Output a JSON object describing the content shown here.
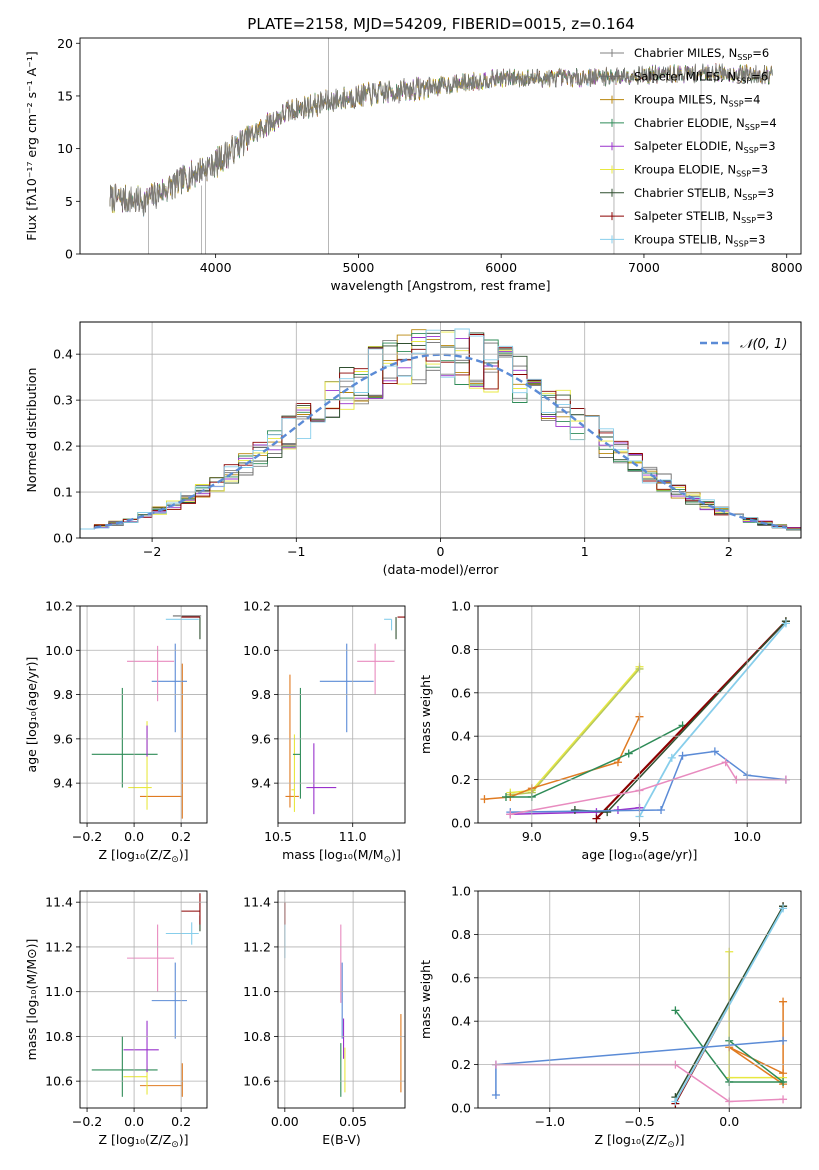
{
  "figure": {
    "title": "PLATE=2158, MJD=54209, FIBERID=0015, z=0.164"
  },
  "chart_data": [
    {
      "id": "spectrum",
      "type": "line",
      "xlabel": "wavelength [Angstrom, rest frame]",
      "ylabel": "Flux [fλ10⁻¹⁷ erg cm⁻² s⁻¹ A⁻¹]",
      "xlim": [
        3050,
        8100
      ],
      "ylim": [
        0,
        20.5
      ],
      "xticks": [
        4000,
        5000,
        6000,
        7000,
        8000
      ],
      "yticks": [
        0,
        5,
        10,
        15,
        20
      ],
      "grid": false,
      "legend_position": "right",
      "series": [
        {
          "name": "Chabrier MILES, N_SSP=6",
          "label_main": "Chabrier MILES, N",
          "label_sub": "SSP",
          "label_tail": "=6",
          "color": "#808080"
        },
        {
          "name": "Salpeter MILES, N_SSP=6",
          "label_main": "Salpeter MILES, N",
          "label_sub": "SSP",
          "label_tail": "=6",
          "color": "#6b6b6b"
        },
        {
          "name": "Kroupa MILES, N_SSP=4",
          "label_main": "Kroupa MILES, N",
          "label_sub": "SSP",
          "label_tail": "=4",
          "color": "#b8860b"
        },
        {
          "name": "Chabrier ELODIE, N_SSP=4",
          "label_main": "Chabrier ELODIE, N",
          "label_sub": "SSP",
          "label_tail": "=4",
          "color": "#2e8b57"
        },
        {
          "name": "Salpeter ELODIE, N_SSP=3",
          "label_main": "Salpeter ELODIE, N",
          "label_sub": "SSP",
          "label_tail": "=3",
          "color": "#9932cc"
        },
        {
          "name": "Kroupa ELODIE, N_SSP=3",
          "label_main": "Kroupa ELODIE, N",
          "label_sub": "SSP",
          "label_tail": "=3",
          "color": "#e8e840"
        },
        {
          "name": "Chabrier STELIB, N_SSP=3",
          "label_main": "Chabrier STELIB, N",
          "label_sub": "SSP",
          "label_tail": "=3",
          "color": "#2f4f2f"
        },
        {
          "name": "Salpeter STELIB, N_SSP=3",
          "label_main": "Salpeter STELIB, N",
          "label_sub": "SSP",
          "label_tail": "=3",
          "color": "#8b0000"
        },
        {
          "name": "Kroupa STELIB, N_SSP=3",
          "label_main": "Kroupa STELIB, N",
          "label_sub": "SSP",
          "label_tail": "=3",
          "color": "#87ceeb"
        }
      ],
      "curve_knots": [
        [
          3250,
          5.3
        ],
        [
          3500,
          5.0
        ],
        [
          3700,
          6.5
        ],
        [
          3900,
          8.0
        ],
        [
          4000,
          8.6
        ],
        [
          4200,
          10.8
        ],
        [
          4500,
          13.5
        ],
        [
          4800,
          14.5
        ],
        [
          5000,
          15.0
        ],
        [
          5300,
          15.5
        ],
        [
          5600,
          16.0
        ],
        [
          6000,
          16.7
        ],
        [
          6500,
          16.7
        ],
        [
          7000,
          17.0
        ],
        [
          7500,
          17.2
        ],
        [
          7900,
          17.0
        ]
      ],
      "spike_lines": [
        [
          3530,
          0,
          5
        ],
        [
          3900,
          0,
          6.5
        ],
        [
          3930,
          0,
          7.5
        ],
        [
          4790,
          0,
          20.5
        ],
        [
          6790,
          0,
          16.5
        ],
        [
          7400,
          0,
          16.5
        ]
      ]
    },
    {
      "id": "residuals",
      "type": "histogram",
      "xlabel": "(data-model)/error",
      "ylabel": "Normed distribution",
      "xlim": [
        -2.5,
        2.5
      ],
      "ylim": [
        0,
        0.47
      ],
      "xticks": [
        -2,
        -1,
        0,
        1,
        2
      ],
      "yticks": [
        0.0,
        0.1,
        0.2,
        0.3,
        0.4
      ],
      "grid": true,
      "legend_position": "top-right",
      "legend_label": "𝒩(0, 1)",
      "gaussian": {
        "mean": 0,
        "sigma": 1,
        "color": "#5b8bd6"
      },
      "bin_width": 0.1
    },
    {
      "id": "z-age",
      "type": "errorbar",
      "xlabel_main": "Z [log₁₀(Z/Z",
      "xlabel_sub": "⊙",
      "xlabel_tail": ")]",
      "ylabel": "age  [log₁₀(age/yr)]",
      "xlim": [
        -0.23,
        0.31
      ],
      "ylim": [
        9.22,
        10.2
      ],
      "xticks": [
        -0.2,
        0.0,
        0.2
      ],
      "yticks": [
        9.4,
        9.6,
        9.8,
        10.0,
        10.2
      ],
      "grid": true,
      "points": [
        {
          "x": 0.205,
          "xerr": [
            0.18,
            0.0
          ],
          "y": 9.34,
          "yerr": [
            0.1,
            0.6
          ],
          "color": "#e07b22"
        },
        {
          "x": 0.055,
          "xerr": [
            0.08,
            0.02
          ],
          "y": 9.38,
          "yerr": [
            0.1,
            0.3
          ],
          "color": "#e8e840"
        },
        {
          "x": -0.05,
          "xerr": [
            0.13,
            0.15
          ],
          "y": 9.53,
          "yerr": [
            0.15,
            0.3
          ],
          "color": "#2e8b57"
        },
        {
          "x": 0.055,
          "xerr": [
            0.0,
            0.0
          ],
          "y": 9.6,
          "yerr": [
            0.08,
            0.06
          ],
          "color": "#9932cc"
        },
        {
          "x": 0.175,
          "xerr": [
            0.1,
            0.05
          ],
          "y": 9.86,
          "yerr": [
            0.23,
            0.17
          ],
          "color": "#5b8bd6"
        },
        {
          "x": 0.1,
          "xerr": [
            0.13,
            0.07
          ],
          "y": 9.95,
          "yerr": [
            0.18,
            0.07
          ],
          "color": "#e88bbf"
        },
        {
          "x": 0.28,
          "xerr": [
            0.0,
            0.0
          ],
          "y": 10.1,
          "yerr": [
            0.05,
            0.05
          ],
          "color": "#2f4f2f"
        },
        {
          "x": 0.245,
          "xerr": [
            0.11,
            0.03
          ],
          "y": 10.14,
          "yerr": [
            0.0,
            0.0
          ],
          "color": "#87ceeb"
        },
        {
          "x": 0.28,
          "xerr": [
            0.08,
            0.0
          ],
          "y": 10.15,
          "yerr": [
            0.0,
            0.0
          ],
          "color": "#8b0000"
        },
        {
          "x": 0.255,
          "xerr": [
            0.09,
            0.03
          ],
          "y": 10.155,
          "yerr": [
            0.0,
            0.0
          ],
          "color": "#6b6b6b"
        }
      ]
    },
    {
      "id": "mass-age",
      "type": "errorbar",
      "xlabel_main": "mass [log₁₀(M/M",
      "xlabel_sub": "⊙",
      "xlabel_tail": ")]",
      "xlim": [
        10.5,
        11.35
      ],
      "ylim": [
        9.22,
        10.2
      ],
      "xticks": [
        10.5,
        11.0
      ],
      "yticks": [
        9.4,
        9.6,
        9.8,
        10.0,
        10.2
      ],
      "grid": true,
      "points": [
        {
          "x": 10.58,
          "xerr": [
            0.03,
            0.06
          ],
          "y": 9.34,
          "yerr": [
            0.05,
            0.55
          ],
          "color": "#e07b22"
        },
        {
          "x": 10.61,
          "xerr": [
            0.02,
            0.0
          ],
          "y": 9.37,
          "yerr": [
            0.1,
            0.25
          ],
          "color": "#e8e840"
        },
        {
          "x": 10.74,
          "xerr": [
            0.05,
            0.15
          ],
          "y": 9.38,
          "yerr": [
            0.12,
            0.2
          ],
          "color": "#9932cc"
        },
        {
          "x": 10.65,
          "xerr": [
            0.05,
            0.0
          ],
          "y": 9.53,
          "yerr": [
            0.2,
            0.3
          ],
          "color": "#2e8b57"
        },
        {
          "x": 10.96,
          "xerr": [
            0.18,
            0.18
          ],
          "y": 9.86,
          "yerr": [
            0.23,
            0.17
          ],
          "color": "#5b8bd6"
        },
        {
          "x": 11.15,
          "xerr": [
            0.12,
            0.13
          ],
          "y": 9.95,
          "yerr": [
            0.15,
            0.08
          ],
          "color": "#e88bbf"
        },
        {
          "x": 11.26,
          "xerr": [
            0.05,
            0.0
          ],
          "y": 10.14,
          "yerr": [
            0.05,
            0.0
          ],
          "color": "#87ceeb"
        },
        {
          "x": 11.29,
          "xerr": [
            0.0,
            0.0
          ],
          "y": 10.1,
          "yerr": [
            0.05,
            0.05
          ],
          "color": "#2f4f2f"
        },
        {
          "x": 11.36,
          "xerr": [
            0.06,
            0.0
          ],
          "y": 10.15,
          "yerr": [
            0.0,
            0.13
          ],
          "color": "#8b0000"
        }
      ]
    },
    {
      "id": "age-weight",
      "type": "line",
      "xlabel_main": "age  [log₁₀(age/yr)]",
      "ylabel": "mass weight",
      "xlim": [
        8.75,
        10.25
      ],
      "ylim": [
        0,
        1.0
      ],
      "xticks": [
        9.0,
        9.5,
        10.0
      ],
      "yticks": [
        0.0,
        0.2,
        0.4,
        0.6,
        0.8,
        1.0
      ],
      "grid": true,
      "series": [
        {
          "color": "#e8e840",
          "x": [
            8.9,
            9.0,
            9.5
          ],
          "y": [
            0.14,
            0.15,
            0.72
          ]
        },
        {
          "color": "#b5c85a",
          "x": [
            8.9,
            9.0,
            9.5
          ],
          "y": [
            0.13,
            0.14,
            0.71
          ]
        },
        {
          "color": "#e07b22",
          "x": [
            8.78,
            8.9,
            9.0,
            9.4,
            9.5
          ],
          "y": [
            0.11,
            0.12,
            0.16,
            0.28,
            0.49
          ]
        },
        {
          "color": "#2e8b57",
          "x": [
            8.88,
            9.0,
            9.45,
            9.7
          ],
          "y": [
            0.12,
            0.12,
            0.32,
            0.45
          ]
        },
        {
          "color": "#9932cc",
          "x": [
            8.9,
            9.3,
            9.4,
            9.5
          ],
          "y": [
            0.04,
            0.05,
            0.06,
            0.07
          ]
        },
        {
          "color": "#8b0000",
          "x": [
            9.3,
            10.18
          ],
          "y": [
            0.02,
            0.93
          ],
          "width": 2.2
        },
        {
          "color": "#2f4f2f",
          "x": [
            9.2,
            9.35,
            10.18
          ],
          "y": [
            0.06,
            0.05,
            0.93
          ]
        },
        {
          "color": "#87ceeb",
          "x": [
            9.5,
            9.65,
            10.18
          ],
          "y": [
            0.03,
            0.3,
            0.92
          ],
          "width": 1.8
        },
        {
          "color": "#5b8bd6",
          "x": [
            8.9,
            9.6,
            9.7,
            9.85,
            10.0,
            10.18
          ],
          "y": [
            0.05,
            0.06,
            0.31,
            0.33,
            0.22,
            0.2
          ]
        },
        {
          "color": "#e88bbf",
          "x": [
            8.9,
            9.5,
            9.9,
            9.95,
            10.18
          ],
          "y": [
            0.04,
            0.15,
            0.28,
            0.2,
            0.2
          ]
        }
      ]
    },
    {
      "id": "z-mass",
      "type": "errorbar",
      "xlabel_main": "Z [log₁₀(Z/Z",
      "xlabel_sub": "⊙",
      "xlabel_tail": ")]",
      "ylabel": "mass [log₁₀(M/M⊙)]",
      "xlim": [
        -0.23,
        0.31
      ],
      "ylim": [
        10.48,
        11.45
      ],
      "xticks": [
        -0.2,
        0.0,
        0.2
      ],
      "yticks": [
        10.6,
        10.8,
        11.0,
        11.2,
        11.4
      ],
      "grid": true,
      "points": [
        {
          "x": 0.205,
          "xerr": [
            0.18,
            0.0
          ],
          "y": 10.58,
          "yerr": [
            0.05,
            0.1
          ],
          "color": "#e07b22"
        },
        {
          "x": 0.055,
          "xerr": [
            0.1,
            0.0
          ],
          "y": 10.62,
          "yerr": [
            0.08,
            0.05
          ],
          "color": "#e8e840"
        },
        {
          "x": -0.05,
          "xerr": [
            0.13,
            0.15
          ],
          "y": 10.65,
          "yerr": [
            0.12,
            0.15
          ],
          "color": "#2e8b57"
        },
        {
          "x": 0.055,
          "xerr": [
            0.1,
            0.05
          ],
          "y": 10.74,
          "yerr": [
            0.1,
            0.13
          ],
          "color": "#9932cc"
        },
        {
          "x": 0.175,
          "xerr": [
            0.1,
            0.05
          ],
          "y": 10.96,
          "yerr": [
            0.17,
            0.17
          ],
          "color": "#5b8bd6"
        },
        {
          "x": 0.1,
          "xerr": [
            0.13,
            0.07
          ],
          "y": 11.15,
          "yerr": [
            0.15,
            0.15
          ],
          "color": "#e88bbf"
        },
        {
          "x": 0.245,
          "xerr": [
            0.11,
            0.03
          ],
          "y": 11.26,
          "yerr": [
            0.05,
            0.05
          ],
          "color": "#87ceeb"
        },
        {
          "x": 0.28,
          "xerr": [
            0.0,
            0.0
          ],
          "y": 11.29,
          "yerr": [
            0.02,
            0.05
          ],
          "color": "#2f4f2f"
        },
        {
          "x": 0.28,
          "xerr": [
            0.08,
            0.0
          ],
          "y": 11.36,
          "yerr": [
            0.06,
            0.08
          ],
          "color": "#8b0000"
        }
      ]
    },
    {
      "id": "ebv-mass",
      "type": "errorbar",
      "xlabel_main": "E(B-V)",
      "xlim": [
        -0.005,
        0.088
      ],
      "ylim": [
        10.48,
        11.45
      ],
      "xticks": [
        0.0,
        0.05
      ],
      "xtick_labels": [
        "0.00",
        "0.05"
      ],
      "yticks": [
        10.6,
        10.8,
        11.0,
        11.2,
        11.4
      ],
      "grid": true,
      "points": [
        {
          "x": 0.085,
          "xerr": [
            0,
            0
          ],
          "y": 10.72,
          "yerr": [
            0.17,
            0.18
          ],
          "color": "#e07b22"
        },
        {
          "x": 0.044,
          "xerr": [
            0,
            0
          ],
          "y": 10.65,
          "yerr": [
            0.1,
            0.1
          ],
          "color": "#e8e840"
        },
        {
          "x": 0.043,
          "xerr": [
            0,
            0
          ],
          "y": 10.8,
          "yerr": [
            0.1,
            0.08
          ],
          "color": "#9932cc"
        },
        {
          "x": 0.041,
          "xerr": [
            0,
            0
          ],
          "y": 10.65,
          "yerr": [
            0.12,
            0.12
          ],
          "color": "#2e8b57"
        },
        {
          "x": 0.042,
          "xerr": [
            0,
            0
          ],
          "y": 10.96,
          "yerr": [
            0.17,
            0.17
          ],
          "color": "#5b8bd6"
        },
        {
          "x": 0.041,
          "xerr": [
            0,
            0
          ],
          "y": 11.1,
          "yerr": [
            0.15,
            0.2
          ],
          "color": "#e88bbf"
        },
        {
          "x": 0.0,
          "xerr": [
            0,
            0
          ],
          "y": 11.25,
          "yerr": [
            0.1,
            0.05
          ],
          "color": "#87ceeb"
        },
        {
          "x": 0.0,
          "xerr": [
            0,
            0
          ],
          "y": 11.33,
          "yerr": [
            0.03,
            0.07
          ],
          "color": "#8b0000"
        }
      ]
    },
    {
      "id": "z-weight",
      "type": "line",
      "xlabel_main": "Z [log₁₀(Z/Z",
      "xlabel_sub": "⊙",
      "xlabel_tail": ")]",
      "ylabel": "mass weight",
      "xlim": [
        -1.4,
        0.4
      ],
      "ylim": [
        0,
        1.0
      ],
      "xticks": [
        -1.0,
        -0.5,
        0.0
      ],
      "xtick_labels": [
        "−1.0",
        "−0.5",
        "0.0"
      ],
      "yticks": [
        0.0,
        0.2,
        0.4,
        0.6,
        0.8,
        1.0
      ],
      "grid": true,
      "series": [
        {
          "color": "#e8e840",
          "x": [
            0.0,
            0.0,
            0.3
          ],
          "y": [
            0.72,
            0.14,
            0.14
          ]
        },
        {
          "color": "#e07b22",
          "x": [
            0.3,
            0.3,
            0.0,
            0.3
          ],
          "y": [
            0.49,
            0.16,
            0.28,
            0.11
          ]
        },
        {
          "color": "#2e8b57",
          "x": [
            -0.3,
            0.0,
            0.3,
            0.0
          ],
          "y": [
            0.45,
            0.12,
            0.12,
            0.31
          ]
        },
        {
          "color": "#8b0000",
          "x": [
            -0.3,
            0.3
          ],
          "y": [
            0.02,
            0.93
          ]
        },
        {
          "color": "#2f4f2f",
          "x": [
            -0.3,
            0.3
          ],
          "y": [
            0.05,
            0.93
          ]
        },
        {
          "color": "#87ceeb",
          "x": [
            -0.3,
            0.3
          ],
          "y": [
            0.03,
            0.92
          ],
          "width": 1.8
        },
        {
          "color": "#5b8bd6",
          "x": [
            -1.3,
            -1.3,
            0.3
          ],
          "y": [
            0.06,
            0.2,
            0.31
          ]
        },
        {
          "color": "#e88bbf",
          "x": [
            -1.3,
            -0.3,
            0.0,
            0.3
          ],
          "y": [
            0.2,
            0.2,
            0.03,
            0.04
          ]
        }
      ]
    }
  ]
}
